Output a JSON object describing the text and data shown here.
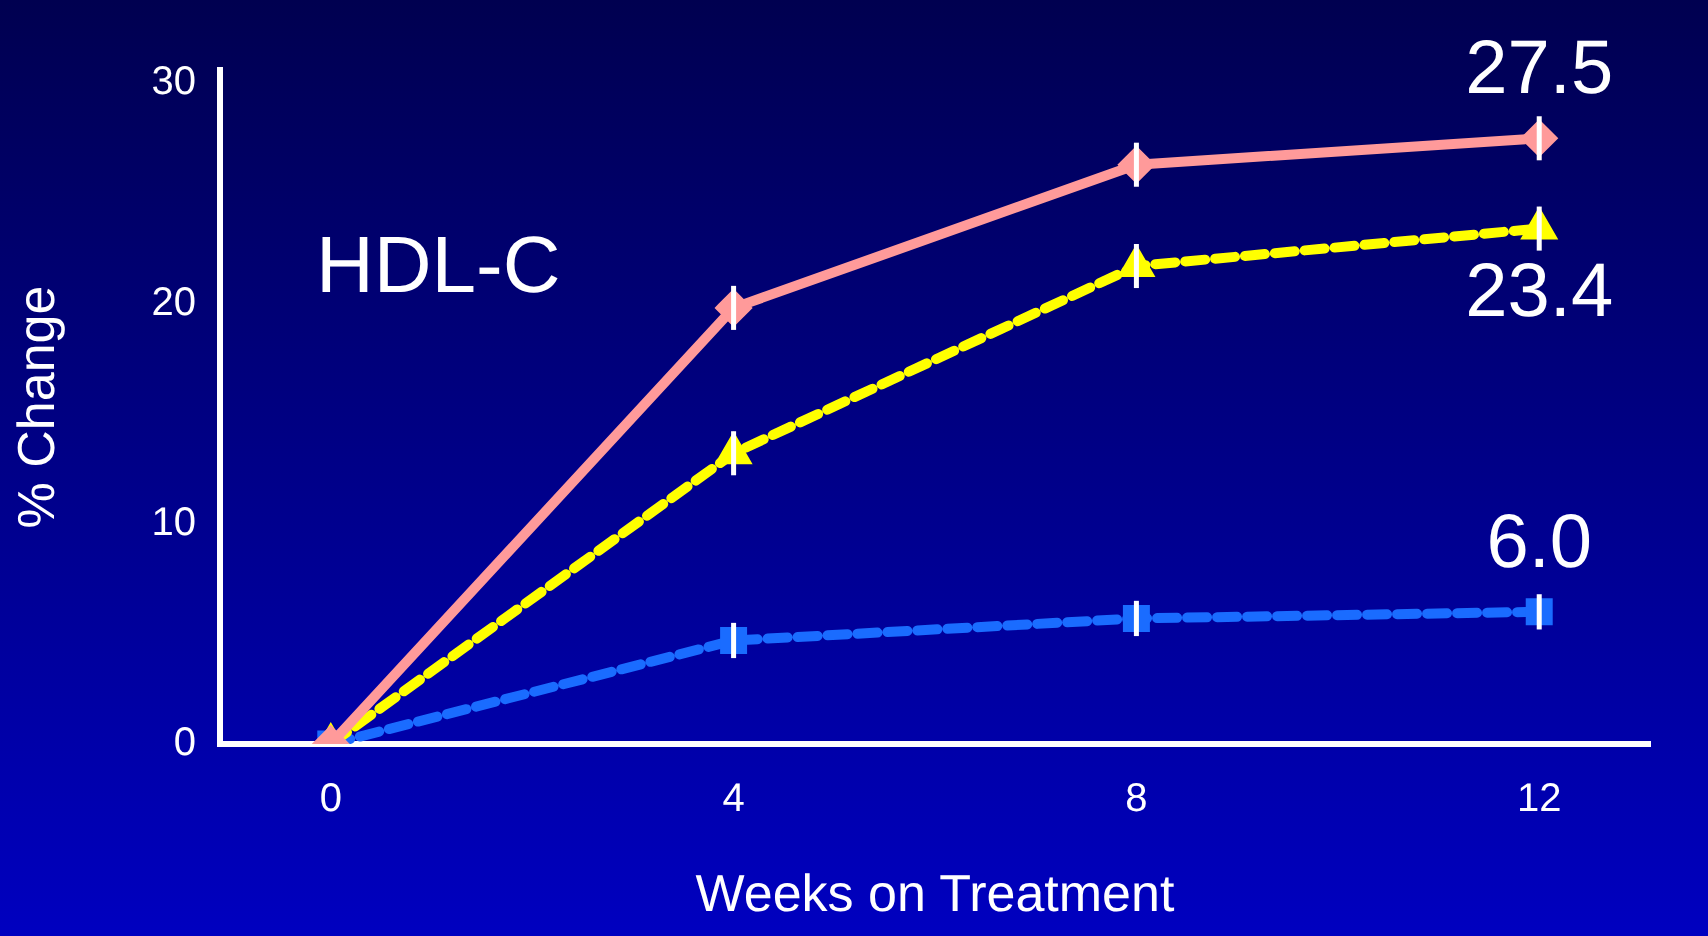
{
  "chart_data": {
    "type": "line",
    "xlabel": "Weeks on Treatment",
    "ylabel": "% Change",
    "annotations": [
      "HDL-C"
    ],
    "x": [
      0,
      4,
      8,
      12
    ],
    "xlim": [
      -1.1,
      13.1
    ],
    "xticks": [
      0,
      4,
      8,
      12
    ],
    "ylim": [
      0,
      30.6
    ],
    "yticks": [
      0,
      10,
      20,
      30
    ],
    "grid": false,
    "legend": false,
    "series": [
      {
        "color": "#ff9a9a",
        "values": [
          0,
          19.8,
          26.3,
          27.5
        ],
        "errors": [
          null,
          1,
          1,
          1
        ],
        "marker": "diamond",
        "line_style": "solid",
        "value_labels": [
          null,
          null,
          null,
          "27.5"
        ]
      },
      {
        "color": "#ffff00",
        "values": [
          0,
          13.2,
          21.7,
          23.4
        ],
        "errors": [
          null,
          1,
          1,
          1
        ],
        "marker": "triangle",
        "line_style": "dashed",
        "value_labels": [
          null,
          null,
          null,
          "23.4"
        ]
      },
      {
        "color": "#1a6cff",
        "values": [
          0,
          4.7,
          5.7,
          6.0
        ],
        "errors": [
          null,
          0.8,
          0.8,
          0.8
        ],
        "marker": "square",
        "line_style": "dashed",
        "value_labels": [
          null,
          null,
          null,
          "6.0"
        ]
      }
    ]
  }
}
